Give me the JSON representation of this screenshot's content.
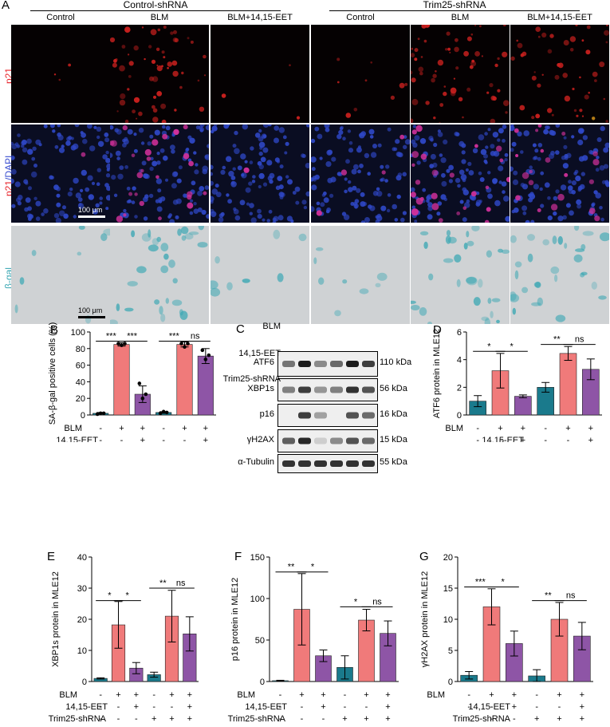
{
  "panelA": {
    "letter": "A",
    "groups": [
      {
        "title": "Control-shRNA",
        "columns": [
          "Control",
          "BLM",
          "BLM+14,15-EET"
        ]
      },
      {
        "title": "Trim25-shRNA",
        "columns": [
          "Control",
          "BLM",
          "BLM+14,15-EET"
        ]
      }
    ],
    "rows": [
      {
        "label": "p21",
        "type": "p21"
      },
      {
        "label_parts": [
          "p21",
          "/DAPI"
        ],
        "type": "dapi"
      },
      {
        "label": "β-gal",
        "type": "gal"
      }
    ],
    "scalebar_1": "100 μm",
    "scalebar_2": "100 μm",
    "colors": {
      "p21": "#e8242a",
      "dapi": "#3b4fd0",
      "gal": "#3aa7b3"
    }
  },
  "conditions": {
    "labels": [
      "BLM",
      "14,15-EET",
      "Trim25-shRNA"
    ],
    "signs": [
      [
        "-",
        "+",
        "+",
        "-",
        "+",
        "+"
      ],
      [
        "-",
        "-",
        "+",
        "-",
        "-",
        "+"
      ],
      [
        "-",
        "-",
        "-",
        "+",
        "+",
        "+"
      ]
    ]
  },
  "panelC": {
    "letter": "C",
    "proteins": [
      {
        "name": "ATF6",
        "kda": "110 kDa",
        "levels": [
          0.55,
          0.95,
          0.45,
          0.6,
          0.95,
          0.8
        ]
      },
      {
        "name": "XBP1s",
        "kda": "56 kDa",
        "levels": [
          0.5,
          0.8,
          0.4,
          0.5,
          0.85,
          0.7
        ]
      },
      {
        "name": "p16",
        "kda": "16 kDa",
        "levels": [
          0.0,
          0.8,
          0.35,
          0.0,
          0.7,
          0.6
        ]
      },
      {
        "name": "γH2AX",
        "kda": "15 kDa",
        "levels": [
          0.65,
          0.9,
          0.15,
          0.45,
          0.7,
          0.6
        ]
      },
      {
        "name": "α-Tubulin",
        "kda": "55 kDa",
        "levels": [
          0.85,
          0.85,
          0.85,
          0.85,
          0.85,
          0.85
        ]
      }
    ]
  },
  "chart_data": [
    {
      "id": "B",
      "letter": "B",
      "type": "bar",
      "ylabel": "SA-β-gal positive cells (%)",
      "ylim": [
        0,
        100
      ],
      "yticks": [
        0,
        20,
        40,
        60,
        80,
        100
      ],
      "values": [
        2,
        85,
        25,
        3,
        85,
        71
      ],
      "errors": [
        1,
        2,
        10,
        1,
        3,
        9
      ],
      "points": [
        [
          1,
          2,
          2
        ],
        [
          86,
          84,
          86
        ],
        [
          38,
          20,
          25
        ],
        [
          2,
          4,
          3
        ],
        [
          86,
          82,
          86
        ],
        [
          78,
          67,
          72
        ]
      ],
      "colors": [
        "#1a7a8c",
        "#f07a7a",
        "#8e55a6",
        "#1a7a8c",
        "#f07a7a",
        "#8e55a6"
      ],
      "sig": [
        {
          "from": 0,
          "to": 1,
          "label": "***",
          "y": 89
        },
        {
          "from": 1,
          "to": 2,
          "label": "***",
          "y": 89
        },
        {
          "from": 3,
          "to": 4,
          "label": "***",
          "y": 89
        },
        {
          "from": 4,
          "to": 5,
          "label": "ns",
          "y": 89
        }
      ]
    },
    {
      "id": "D",
      "letter": "D",
      "type": "bar",
      "ylabel": "ATF6 protein in MLE12",
      "ylim": [
        0,
        6
      ],
      "yticks": [
        0,
        2,
        4,
        6
      ],
      "values": [
        1.0,
        3.2,
        1.35,
        2.0,
        4.45,
        3.3
      ],
      "errors": [
        0.4,
        1.25,
        0.1,
        0.35,
        0.5,
        0.75
      ],
      "colors": [
        "#1a7a8c",
        "#f07a7a",
        "#8e55a6",
        "#1a7a8c",
        "#f07a7a",
        "#8e55a6"
      ],
      "sig": [
        {
          "from": 0,
          "to": 1,
          "label": "*",
          "y": 4.6
        },
        {
          "from": 1,
          "to": 2,
          "label": "*",
          "y": 4.6
        },
        {
          "from": 3,
          "to": 4,
          "label": "**",
          "y": 5.1
        },
        {
          "from": 4,
          "to": 5,
          "label": "ns",
          "y": 5.1
        }
      ]
    },
    {
      "id": "E",
      "letter": "E",
      "type": "bar",
      "ylabel": "XBP1s protein in MLE12",
      "ylim": [
        0,
        40
      ],
      "yticks": [
        0,
        10,
        20,
        30,
        40
      ],
      "values": [
        1.0,
        18.2,
        4.3,
        2.2,
        21.0,
        15.3
      ],
      "errors": [
        0.2,
        7.5,
        1.8,
        0.8,
        8.3,
        5.5
      ],
      "colors": [
        "#1a7a8c",
        "#f07a7a",
        "#8e55a6",
        "#1a7a8c",
        "#f07a7a",
        "#8e55a6"
      ],
      "sig": [
        {
          "from": 0,
          "to": 1,
          "label": "*",
          "y": 26
        },
        {
          "from": 1,
          "to": 2,
          "label": "*",
          "y": 26
        },
        {
          "from": 3,
          "to": 4,
          "label": "**",
          "y": 30
        },
        {
          "from": 4,
          "to": 5,
          "label": "ns",
          "y": 30
        }
      ]
    },
    {
      "id": "F",
      "letter": "F",
      "type": "bar",
      "ylabel": "p16 protein in MLE12",
      "ylim": [
        0,
        150
      ],
      "yticks": [
        0,
        50,
        100,
        150
      ],
      "values": [
        1,
        87,
        31,
        17,
        74,
        58
      ],
      "errors": [
        0.5,
        43,
        7,
        14,
        13,
        15
      ],
      "colors": [
        "#1a7a8c",
        "#f07a7a",
        "#8e55a6",
        "#1a7a8c",
        "#f07a7a",
        "#8e55a6"
      ],
      "sig": [
        {
          "from": 0,
          "to": 1,
          "label": "**",
          "y": 132
        },
        {
          "from": 1,
          "to": 2,
          "label": "*",
          "y": 132
        },
        {
          "from": 3,
          "to": 4,
          "label": "*",
          "y": 90
        },
        {
          "from": 4,
          "to": 5,
          "label": "ns",
          "y": 90
        }
      ]
    },
    {
      "id": "G",
      "letter": "G",
      "type": "bar",
      "ylabel": "γH2AX protein in MLE12",
      "ylim": [
        0,
        20
      ],
      "yticks": [
        0,
        5,
        10,
        15,
        20
      ],
      "values": [
        1.0,
        12.0,
        6.1,
        0.9,
        10.0,
        7.3
      ],
      "errors": [
        0.6,
        2.9,
        2.0,
        1.0,
        2.7,
        2.2
      ],
      "colors": [
        "#1a7a8c",
        "#f07a7a",
        "#8e55a6",
        "#1a7a8c",
        "#f07a7a",
        "#8e55a6"
      ],
      "sig": [
        {
          "from": 0,
          "to": 1,
          "label": "***",
          "y": 15.2
        },
        {
          "from": 1,
          "to": 2,
          "label": "*",
          "y": 15.2
        },
        {
          "from": 3,
          "to": 4,
          "label": "**",
          "y": 13
        },
        {
          "from": 4,
          "to": 5,
          "label": "ns",
          "y": 13
        }
      ]
    }
  ]
}
